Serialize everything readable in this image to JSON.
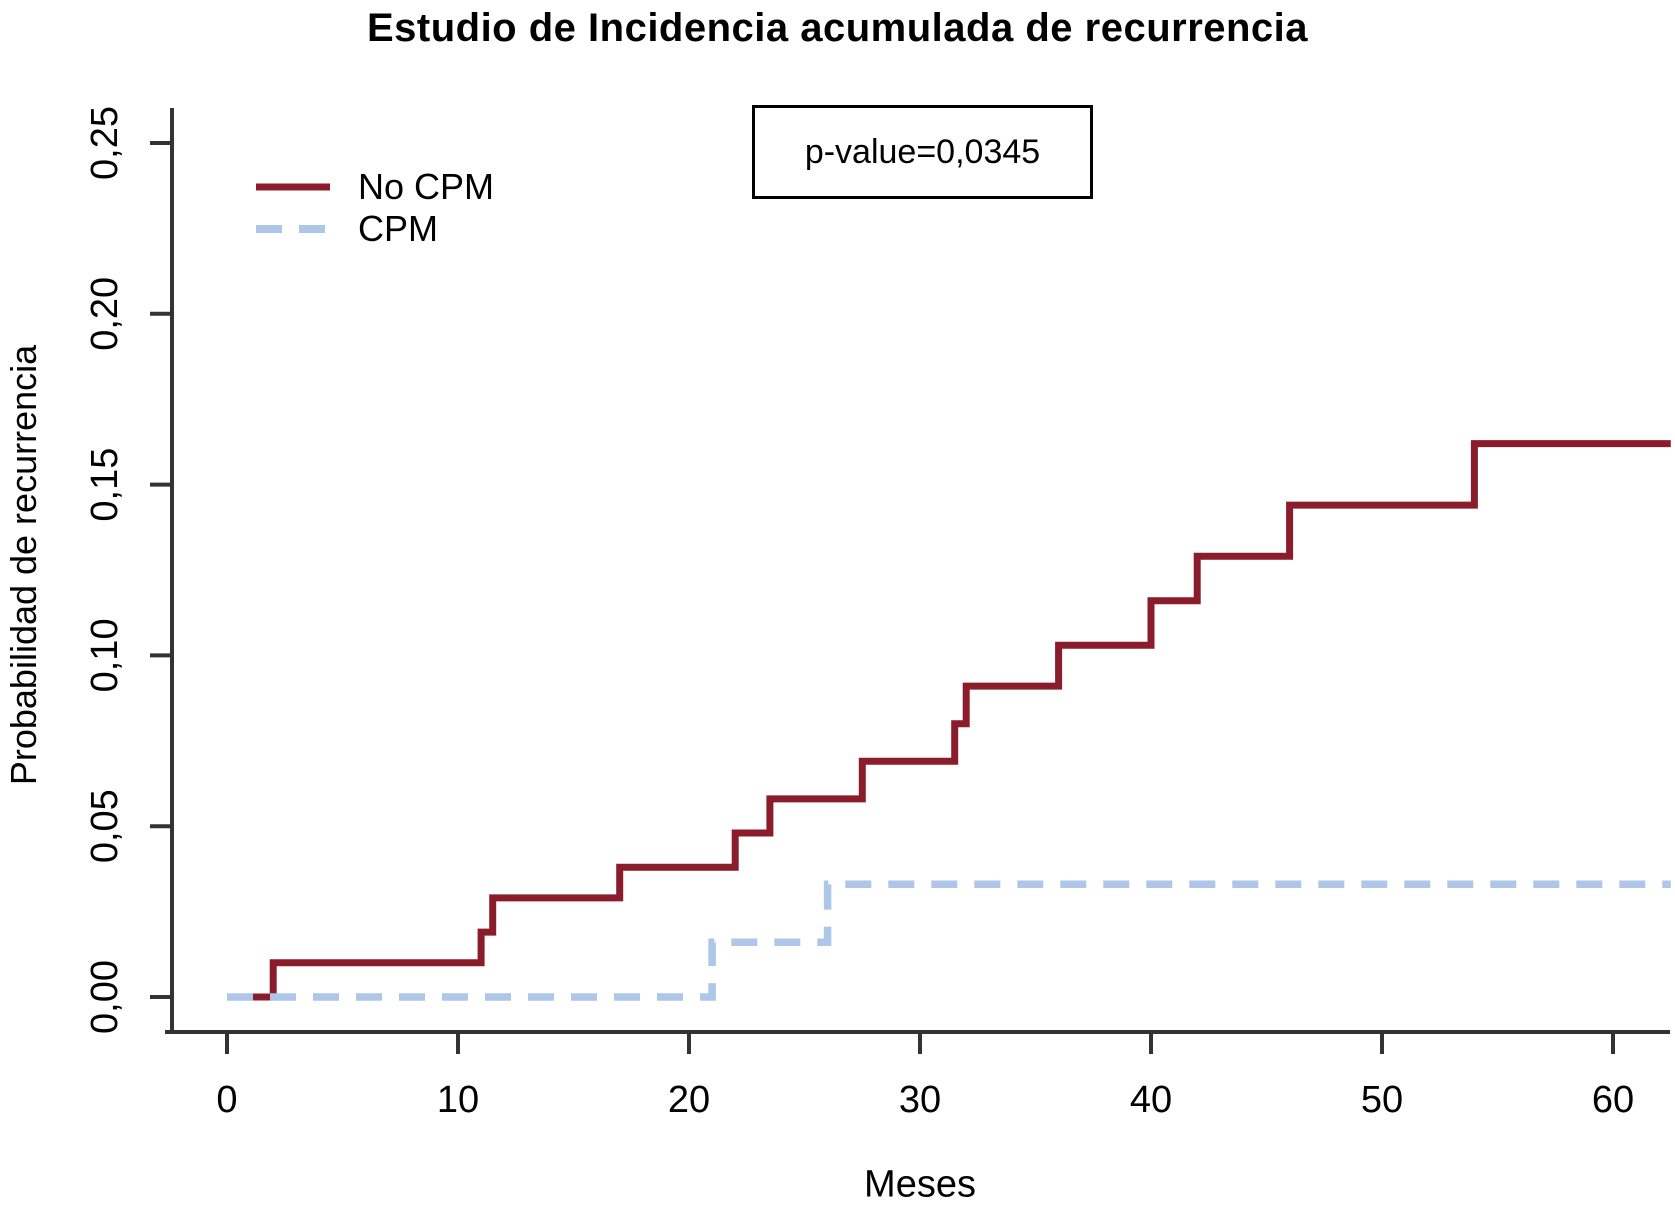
{
  "title": "Estudio de Incidencia acumulada de recurrencia",
  "annotation_box": {
    "text": "p-value=0,0345"
  },
  "legend": {
    "items": [
      {
        "label": "No CPM",
        "style": "solid",
        "color": "#8B1C2C"
      },
      {
        "label": "CPM",
        "style": "dashed",
        "color": "#AEC6E8"
      }
    ]
  },
  "axes": {
    "xlabel": "Meses",
    "ylabel": "Probabilidad de recurrencia",
    "x_tick_labels": [
      "0",
      "10",
      "20",
      "30",
      "40",
      "50",
      "60"
    ],
    "y_tick_labels": [
      "0,00",
      "0,05",
      "0,10",
      "0,15",
      "0,20",
      "0,25"
    ]
  },
  "colors": {
    "no_cpm_line": "#8B1C2C",
    "cpm_line": "#AEC6E8",
    "axis": "#333333",
    "text": "#000000"
  },
  "chart_data": {
    "type": "line",
    "subtype": "step-cumulative-incidence",
    "title": "Estudio de Incidencia acumulada de recurrencia",
    "xlabel": "Meses",
    "ylabel": "Probabilidad de recurrencia",
    "xlim": [
      0,
      62.5
    ],
    "ylim": [
      0,
      0.25
    ],
    "x_ticks": [
      0,
      10,
      20,
      30,
      40,
      50,
      60
    ],
    "x_tick_labels": [
      "0",
      "10",
      "20",
      "30",
      "40",
      "50",
      "60"
    ],
    "y_ticks": [
      0,
      0.05,
      0.1,
      0.15,
      0.2,
      0.25
    ],
    "y_tick_labels": [
      "0,00",
      "0,05",
      "0,10",
      "0,15",
      "0,20",
      "0,25"
    ],
    "grid": false,
    "legend_position": "top-left",
    "annotation": "p-value=0,0345",
    "series": [
      {
        "name": "No CPM",
        "color": "#8B1C2C",
        "style": "solid",
        "stroke_width": 7,
        "end_x": 62.5,
        "steps": [
          [
            0,
            0
          ],
          [
            2,
            0.01
          ],
          [
            11,
            0.019
          ],
          [
            11.5,
            0.029
          ],
          [
            17,
            0.038
          ],
          [
            22,
            0.048
          ],
          [
            23.5,
            0.058
          ],
          [
            27.5,
            0.069
          ],
          [
            31.5,
            0.08
          ],
          [
            32,
            0.091
          ],
          [
            36,
            0.103
          ],
          [
            40,
            0.116
          ],
          [
            42,
            0.129
          ],
          [
            46,
            0.144
          ],
          [
            54,
            0.162
          ]
        ]
      },
      {
        "name": "CPM",
        "color": "#AEC6E8",
        "style": "dashed",
        "stroke_width": 7.5,
        "end_x": 62.5,
        "steps": [
          [
            0,
            0
          ],
          [
            21,
            0.016
          ],
          [
            26,
            0.033
          ]
        ]
      }
    ]
  }
}
